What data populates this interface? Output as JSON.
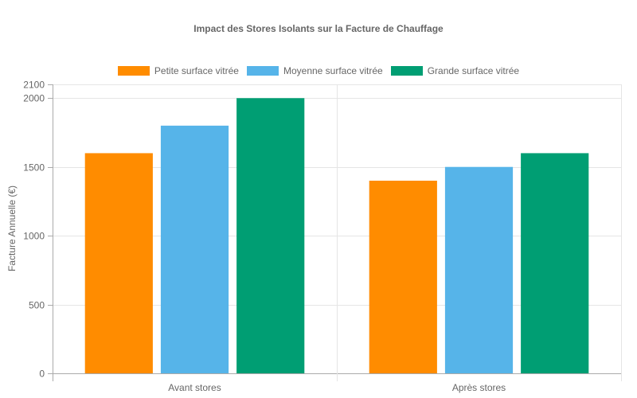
{
  "chart_data": {
    "type": "bar",
    "title": "Impact des Stores Isolants sur la Facture de Chauffage",
    "xlabel": "",
    "ylabel": "Facture Annuelle (€)",
    "categories": [
      "Avant stores",
      "Après stores"
    ],
    "series": [
      {
        "name": "Petite surface vitrée",
        "color": "#FF8C00",
        "values": [
          1600,
          1400
        ]
      },
      {
        "name": "Moyenne surface vitrée",
        "color": "#56B4E9",
        "values": [
          1800,
          1500
        ]
      },
      {
        "name": "Grande surface vitrée",
        "color": "#009E73",
        "values": [
          2000,
          1600
        ]
      }
    ],
    "ylim": [
      0,
      2100
    ],
    "yticks": [
      0,
      500,
      1000,
      1500,
      2000,
      2100
    ],
    "grid": true,
    "legend_position": "top"
  }
}
